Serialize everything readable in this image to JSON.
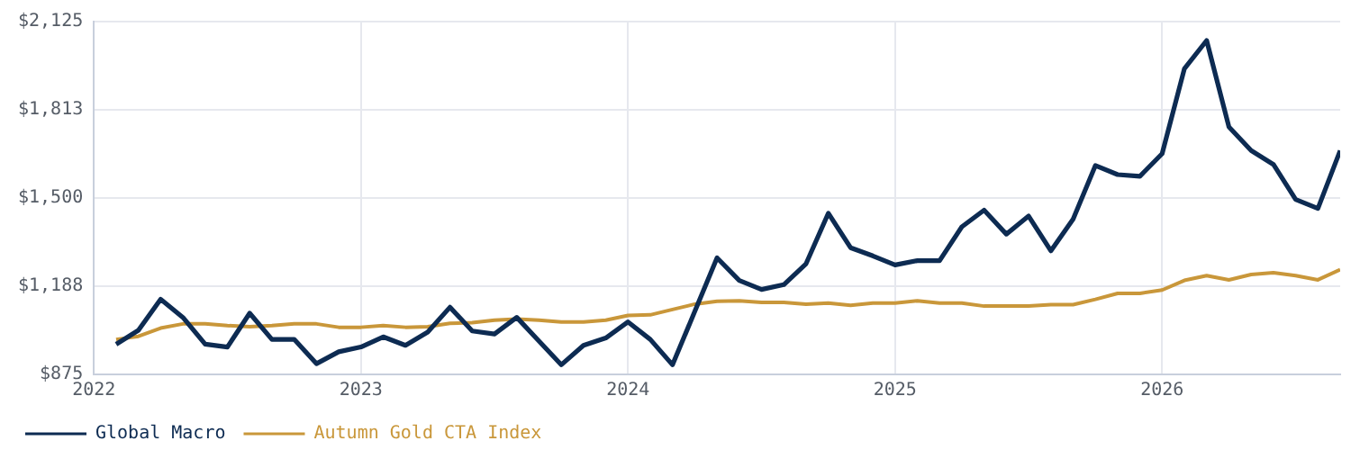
{
  "chart_data": {
    "type": "line",
    "x": [
      "2022-02",
      "2022-03",
      "2022-04",
      "2022-05",
      "2022-06",
      "2022-07",
      "2022-08",
      "2022-09",
      "2022-10",
      "2022-11",
      "2022-12",
      "2023-01",
      "2023-02",
      "2023-03",
      "2023-04",
      "2023-05",
      "2023-06",
      "2023-07",
      "2023-08",
      "2023-09",
      "2023-10",
      "2023-11",
      "2023-12",
      "2024-01",
      "2024-02",
      "2024-03",
      "2024-04",
      "2024-05",
      "2024-06",
      "2024-07",
      "2024-08",
      "2024-09",
      "2024-10",
      "2024-11",
      "2024-12",
      "2025-01",
      "2025-02",
      "2025-03",
      "2025-04",
      "2025-05",
      "2025-06",
      "2025-07",
      "2025-08",
      "2025-09",
      "2025-10",
      "2025-11",
      "2025-12",
      "2026-01",
      "2026-02",
      "2026-03",
      "2026-04",
      "2026-05",
      "2026-06",
      "2026-07",
      "2026-08",
      "2026-09"
    ],
    "series": [
      {
        "name": "Global Macro",
        "color": "#0d2b52",
        "values": [
          982,
          1031,
          1141,
          1077,
          982,
          972,
          1092,
          999,
          999,
          913,
          955,
          972,
          1008,
          978,
          1025,
          1113,
          1029,
          1018,
          1077,
          993,
          909,
          978,
          1004,
          1061,
          999,
          909,
          1098,
          1288,
          1208,
          1176,
          1193,
          1267,
          1446,
          1324,
          1295,
          1263,
          1278,
          1278,
          1398,
          1457,
          1372,
          1436,
          1313,
          1425,
          1615,
          1583,
          1577,
          1657,
          1958,
          2058,
          1752,
          1668,
          1619,
          1495,
          1463,
          1668
        ]
      },
      {
        "name": "Autumn Gold CTA Index",
        "color": "#c9973a",
        "values": [
          999,
          1010,
          1039,
          1054,
          1054,
          1048,
          1044,
          1048,
          1054,
          1054,
          1042,
          1042,
          1048,
          1042,
          1044,
          1056,
          1058,
          1067,
          1071,
          1067,
          1061,
          1061,
          1067,
          1084,
          1086,
          1105,
          1124,
          1134,
          1136,
          1130,
          1130,
          1124,
          1128,
          1120,
          1128,
          1128,
          1136,
          1128,
          1128,
          1117,
          1117,
          1117,
          1122,
          1122,
          1141,
          1162,
          1162,
          1174,
          1208,
          1225,
          1210,
          1229,
          1235,
          1225,
          1210,
          1246
        ]
      }
    ],
    "xlim": [
      "2022",
      "2026-09"
    ],
    "xticks": [
      "2022",
      "2023",
      "2024",
      "2025",
      "2026"
    ],
    "ylim": [
      875,
      2125
    ],
    "yticks": [
      {
        "value": 875,
        "label": "$875"
      },
      {
        "value": 1187.5,
        "label": "$1,188"
      },
      {
        "value": 1500,
        "label": "$1,500"
      },
      {
        "value": 1812.5,
        "label": "$1,813"
      },
      {
        "value": 2125,
        "label": "$2,125"
      }
    ],
    "grid": true,
    "legend": "bottom",
    "marker": "none",
    "line_style": "solid"
  }
}
